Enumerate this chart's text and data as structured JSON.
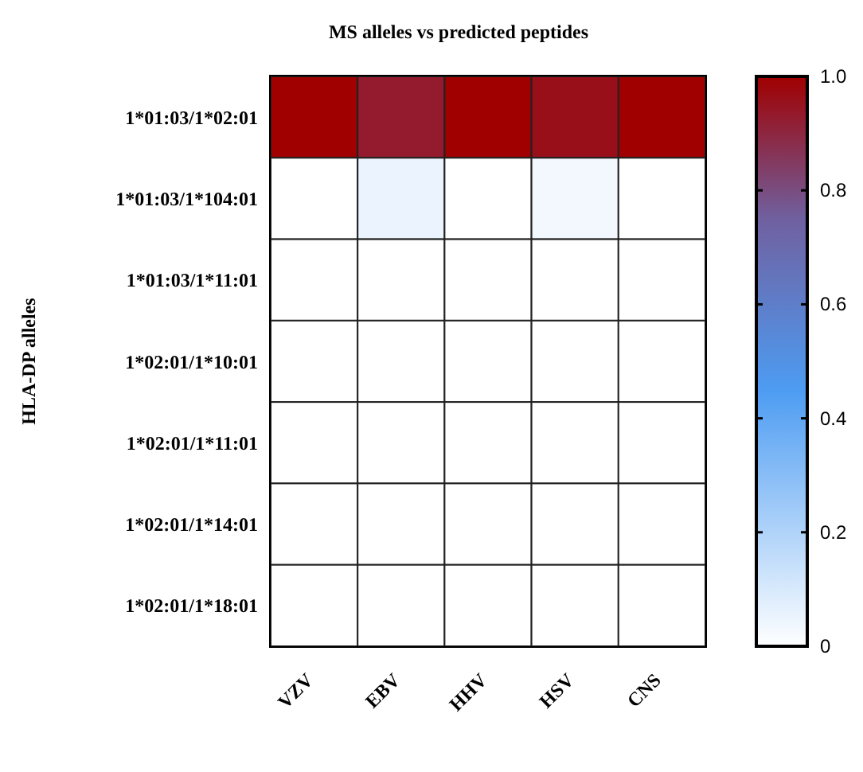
{
  "chart_data": {
    "type": "heatmap",
    "title": "MS alleles vs predicted peptides",
    "ylabel": "HLA-DP alleles",
    "categories": [
      "VZV",
      "EBV",
      "HHV",
      "HSV",
      "CNS"
    ],
    "y_categories": [
      "1*01:03/1*02:01",
      "1*01:03/1*104:01",
      "1*01:03/1*11:01",
      "1*02:01/1*10:01",
      "1*02:01/1*11:01",
      "1*02:01/1*14:01",
      "1*02:01/1*18:01"
    ],
    "cells": [
      [
        1,
        0.93,
        1,
        0.96,
        1
      ],
      [
        0,
        0.05,
        0,
        0.03,
        0
      ],
      [
        0,
        0,
        0,
        0,
        0
      ],
      [
        0,
        0,
        0,
        0,
        0
      ],
      [
        0,
        0,
        0,
        0,
        0
      ],
      [
        0,
        0,
        0,
        0,
        0
      ],
      [
        0,
        0,
        0,
        0,
        0
      ]
    ],
    "clim": [
      0,
      1
    ],
    "cticks": [
      0,
      0.2,
      0.4,
      0.6,
      0.8,
      {
        "value": 1,
        "label": "1.0"
      }
    ]
  }
}
